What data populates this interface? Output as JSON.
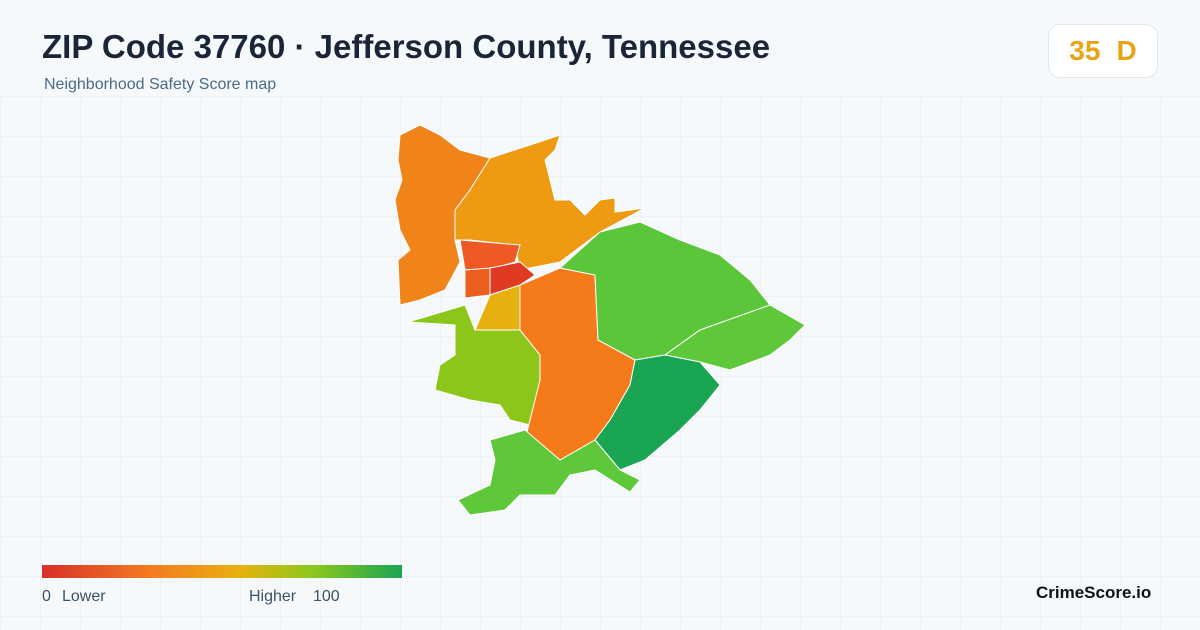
{
  "header": {
    "title": "ZIP Code 37760 · Jefferson County, Tennessee",
    "subtitle": "Neighborhood Safety Score map"
  },
  "score": {
    "value": "35",
    "grade": "D"
  },
  "legend": {
    "min": "0",
    "min_label": "Lower",
    "max_label": "Higher",
    "max": "100"
  },
  "brand": "CrimeScore.io"
}
